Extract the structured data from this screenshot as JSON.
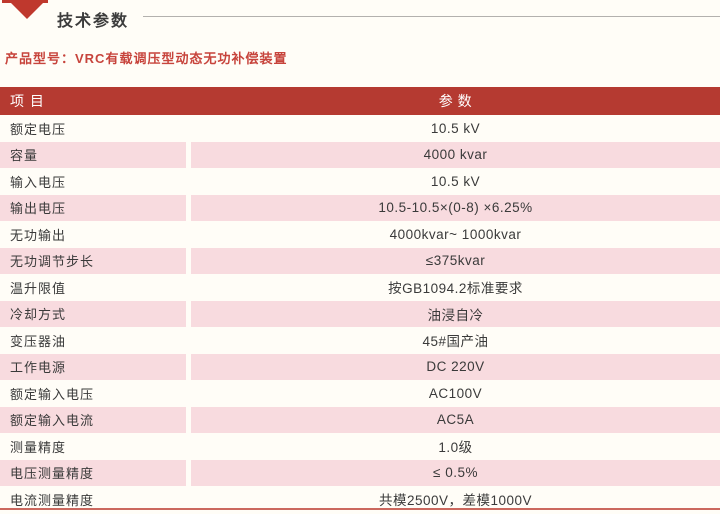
{
  "page": {
    "title": "技术参数",
    "product_label": "产品型号：VRC有载调压型动态无功补偿装置"
  },
  "table": {
    "headers": {
      "item": "项 目",
      "param": "参 数"
    },
    "rows": [
      {
        "label": "额定电压",
        "value": "10.5 kV"
      },
      {
        "label": "容量",
        "value": "4000 kvar"
      },
      {
        "label": "输入电压",
        "value": "10.5 kV"
      },
      {
        "label": "输出电压",
        "value": "10.5-10.5×(0-8) ×6.25%"
      },
      {
        "label": "无功输出",
        "value": "4000kvar~ 1000kvar"
      },
      {
        "label": "无功调节步长",
        "value": "≤375kvar"
      },
      {
        "label": "温升限值",
        "value": "按GB1094.2标准要求"
      },
      {
        "label": "冷却方式",
        "value": "油浸自冷"
      },
      {
        "label": "变压器油",
        "value": "45#国产油"
      },
      {
        "label": "工作电源",
        "value": "DC 220V"
      },
      {
        "label": "额定输入电压",
        "value": "AC100V"
      },
      {
        "label": "额定输入电流",
        "value": "AC5A"
      },
      {
        "label": "测量精度",
        "value": "1.0级"
      },
      {
        "label": "电压测量精度",
        "value": "≤ 0.5%"
      },
      {
        "label": "电流测量精度",
        "value": "共模2500V，差模1000V"
      }
    ]
  },
  "icons": {
    "title_marker": "banner-triangle-icon"
  },
  "colors": {
    "header_red": "#b53a31",
    "row_pink": "#f8dbdf",
    "accent_red": "#bf382d",
    "product_text_red": "#c7443c",
    "bottom_line_red": "#cb685e",
    "page_background": "#fffdf7",
    "body_text": "#3a3a3a",
    "rule_gray": "#b3b1ae"
  }
}
